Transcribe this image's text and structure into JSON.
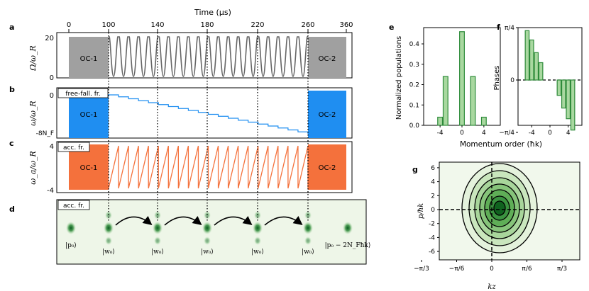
{
  "top_axis": {
    "title": "Time (μs)",
    "ticks": [
      0,
      100,
      140,
      180,
      220,
      260,
      360
    ]
  },
  "panel_a": {
    "letter": "a",
    "ylabel": "Ω/ω_R",
    "yticks": [
      "20",
      "0"
    ],
    "oc1": "OC-1",
    "oc2": "OC-2",
    "pulse_count": 20,
    "amplitude": 20
  },
  "panel_b": {
    "letter": "b",
    "frame_label": "free-fall. fr.",
    "ylabel": "ω/ω_R",
    "yticks": [
      "0",
      "-8N_F"
    ],
    "oc1": "OC-1",
    "oc2": "OC-2",
    "steps": 20
  },
  "panel_c": {
    "letter": "c",
    "frame_label": "acc. fr.",
    "ylabel": "ω_a/ω_R",
    "yticks": [
      "4",
      "-4"
    ],
    "oc1": "OC-1",
    "oc2": "OC-2",
    "ramps": 20
  },
  "panel_d": {
    "letter": "d",
    "frame_label": "acc. fr.",
    "state_labels": [
      "|p₀⟩",
      "|w₀⟩",
      "|w₀⟩",
      "|w₀⟩",
      "|w₀⟩",
      "|w₀⟩",
      "|p₀ − 2N_Fħk⟩"
    ]
  },
  "panel_e": {
    "letter": "e",
    "ylabel": "Normalized populations",
    "yticks": [
      "0.0",
      "0.1",
      "0.2",
      "0.3",
      "0.4"
    ],
    "xticks": [
      "-4",
      "0",
      "4"
    ]
  },
  "panel_f": {
    "letter": "f",
    "ylabel": "Phases",
    "yticks": [
      "π/4",
      "0",
      "−π/4"
    ],
    "xticks": [
      "-4",
      "0",
      "4"
    ]
  },
  "shared_xlabel": "Momentum order (ħk)",
  "panel_g": {
    "letter": "g",
    "ylabel": "p/ħk",
    "xlabel": "kz",
    "yticks": [
      "6",
      "4",
      "2",
      "0",
      "-2",
      "-4",
      "-6"
    ],
    "xticks": [
      "−π/3",
      "−π/6",
      "0",
      "π/6",
      "π/3"
    ]
  },
  "colors": {
    "gray": "#a0a0a0",
    "blue": "#1f8ef1",
    "orange": "#f4713c",
    "green": "#2e8b3a",
    "light_green": "#a9d8a0",
    "bg_green": "#eef6e8"
  },
  "chart_data": [
    {
      "type": "bar",
      "panel": "e",
      "categories": [
        -6,
        -5,
        -4,
        -3,
        -2,
        -1,
        0,
        1,
        2,
        3,
        4,
        5,
        6
      ],
      "values": [
        0,
        0,
        0.04,
        0.24,
        0,
        0,
        0.46,
        0,
        0.24,
        0,
        0.04,
        0,
        0
      ],
      "ylim": [
        0,
        0.48
      ],
      "xlim": [
        -7,
        7
      ]
    },
    {
      "type": "bar",
      "panel": "f",
      "categories": [
        -6,
        -5,
        -4,
        -3,
        -2,
        -1,
        0,
        1,
        2,
        3,
        4,
        5,
        6
      ],
      "values": [
        0.0,
        0.74,
        0.6,
        0.41,
        0.26,
        0.0,
        0.0,
        0.0,
        -0.23,
        -0.42,
        -0.58,
        -0.75,
        0.0
      ],
      "ylim": [
        -0.785,
        0.785
      ],
      "xlim": [
        -7,
        7
      ]
    }
  ]
}
